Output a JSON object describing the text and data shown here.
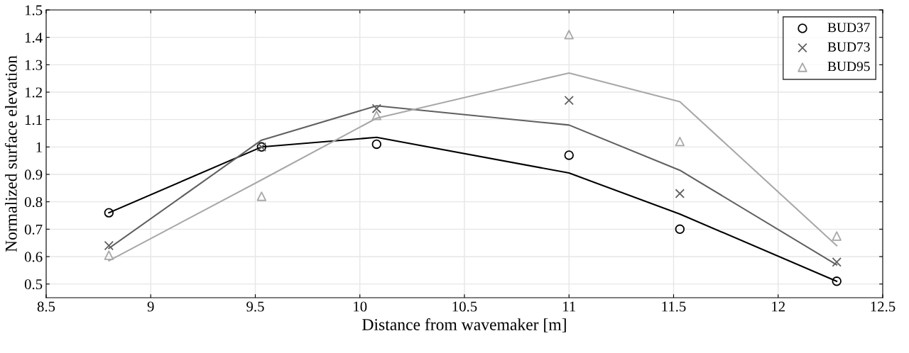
{
  "chart_data": {
    "type": "line",
    "xlabel": "Distance from wavemaker [m]",
    "ylabel": "Normalized surface elevation",
    "x": [
      8.8,
      9.53,
      10.08,
      11.0,
      11.53,
      12.28
    ],
    "xlim": [
      8.5,
      12.5
    ],
    "xticks": [
      8.5,
      9,
      9.5,
      10,
      10.5,
      11,
      11.5,
      12,
      12.5
    ],
    "ylim": [
      0.45,
      1.5
    ],
    "yticks": [
      0.5,
      0.6,
      0.7,
      0.8,
      0.9,
      1,
      1.1,
      1.2,
      1.3,
      1.4,
      1.5
    ],
    "grid": true,
    "legend": "top right",
    "series": [
      {
        "name": "BUD37",
        "type": "scatter",
        "marker": "circle",
        "color": "#000000",
        "values": [
          0.76,
          1.0,
          1.01,
          0.97,
          0.7,
          0.51
        ]
      },
      {
        "name": "BUD73",
        "type": "scatter",
        "marker": "cross",
        "color": "#606060",
        "values": [
          0.64,
          1.0,
          1.14,
          1.17,
          0.83,
          0.58
        ]
      },
      {
        "name": "BUD95",
        "type": "scatter",
        "marker": "triangle",
        "color": "#a8a8a8",
        "values": [
          0.605,
          0.82,
          1.115,
          1.41,
          1.02,
          0.675
        ]
      },
      {
        "marker": "none",
        "line_style": "solid",
        "color": "#000000",
        "values": [
          0.76,
          1.0,
          1.035,
          0.905,
          0.755,
          0.51
        ]
      },
      {
        "marker": "none",
        "line_style": "solid",
        "color": "#606060",
        "values": [
          0.63,
          1.025,
          1.15,
          1.08,
          0.915,
          0.57
        ]
      },
      {
        "marker": "none",
        "line_style": "solid",
        "color": "#a8a8a8",
        "values": [
          0.585,
          0.88,
          1.105,
          1.27,
          1.165,
          0.64
        ]
      }
    ]
  }
}
